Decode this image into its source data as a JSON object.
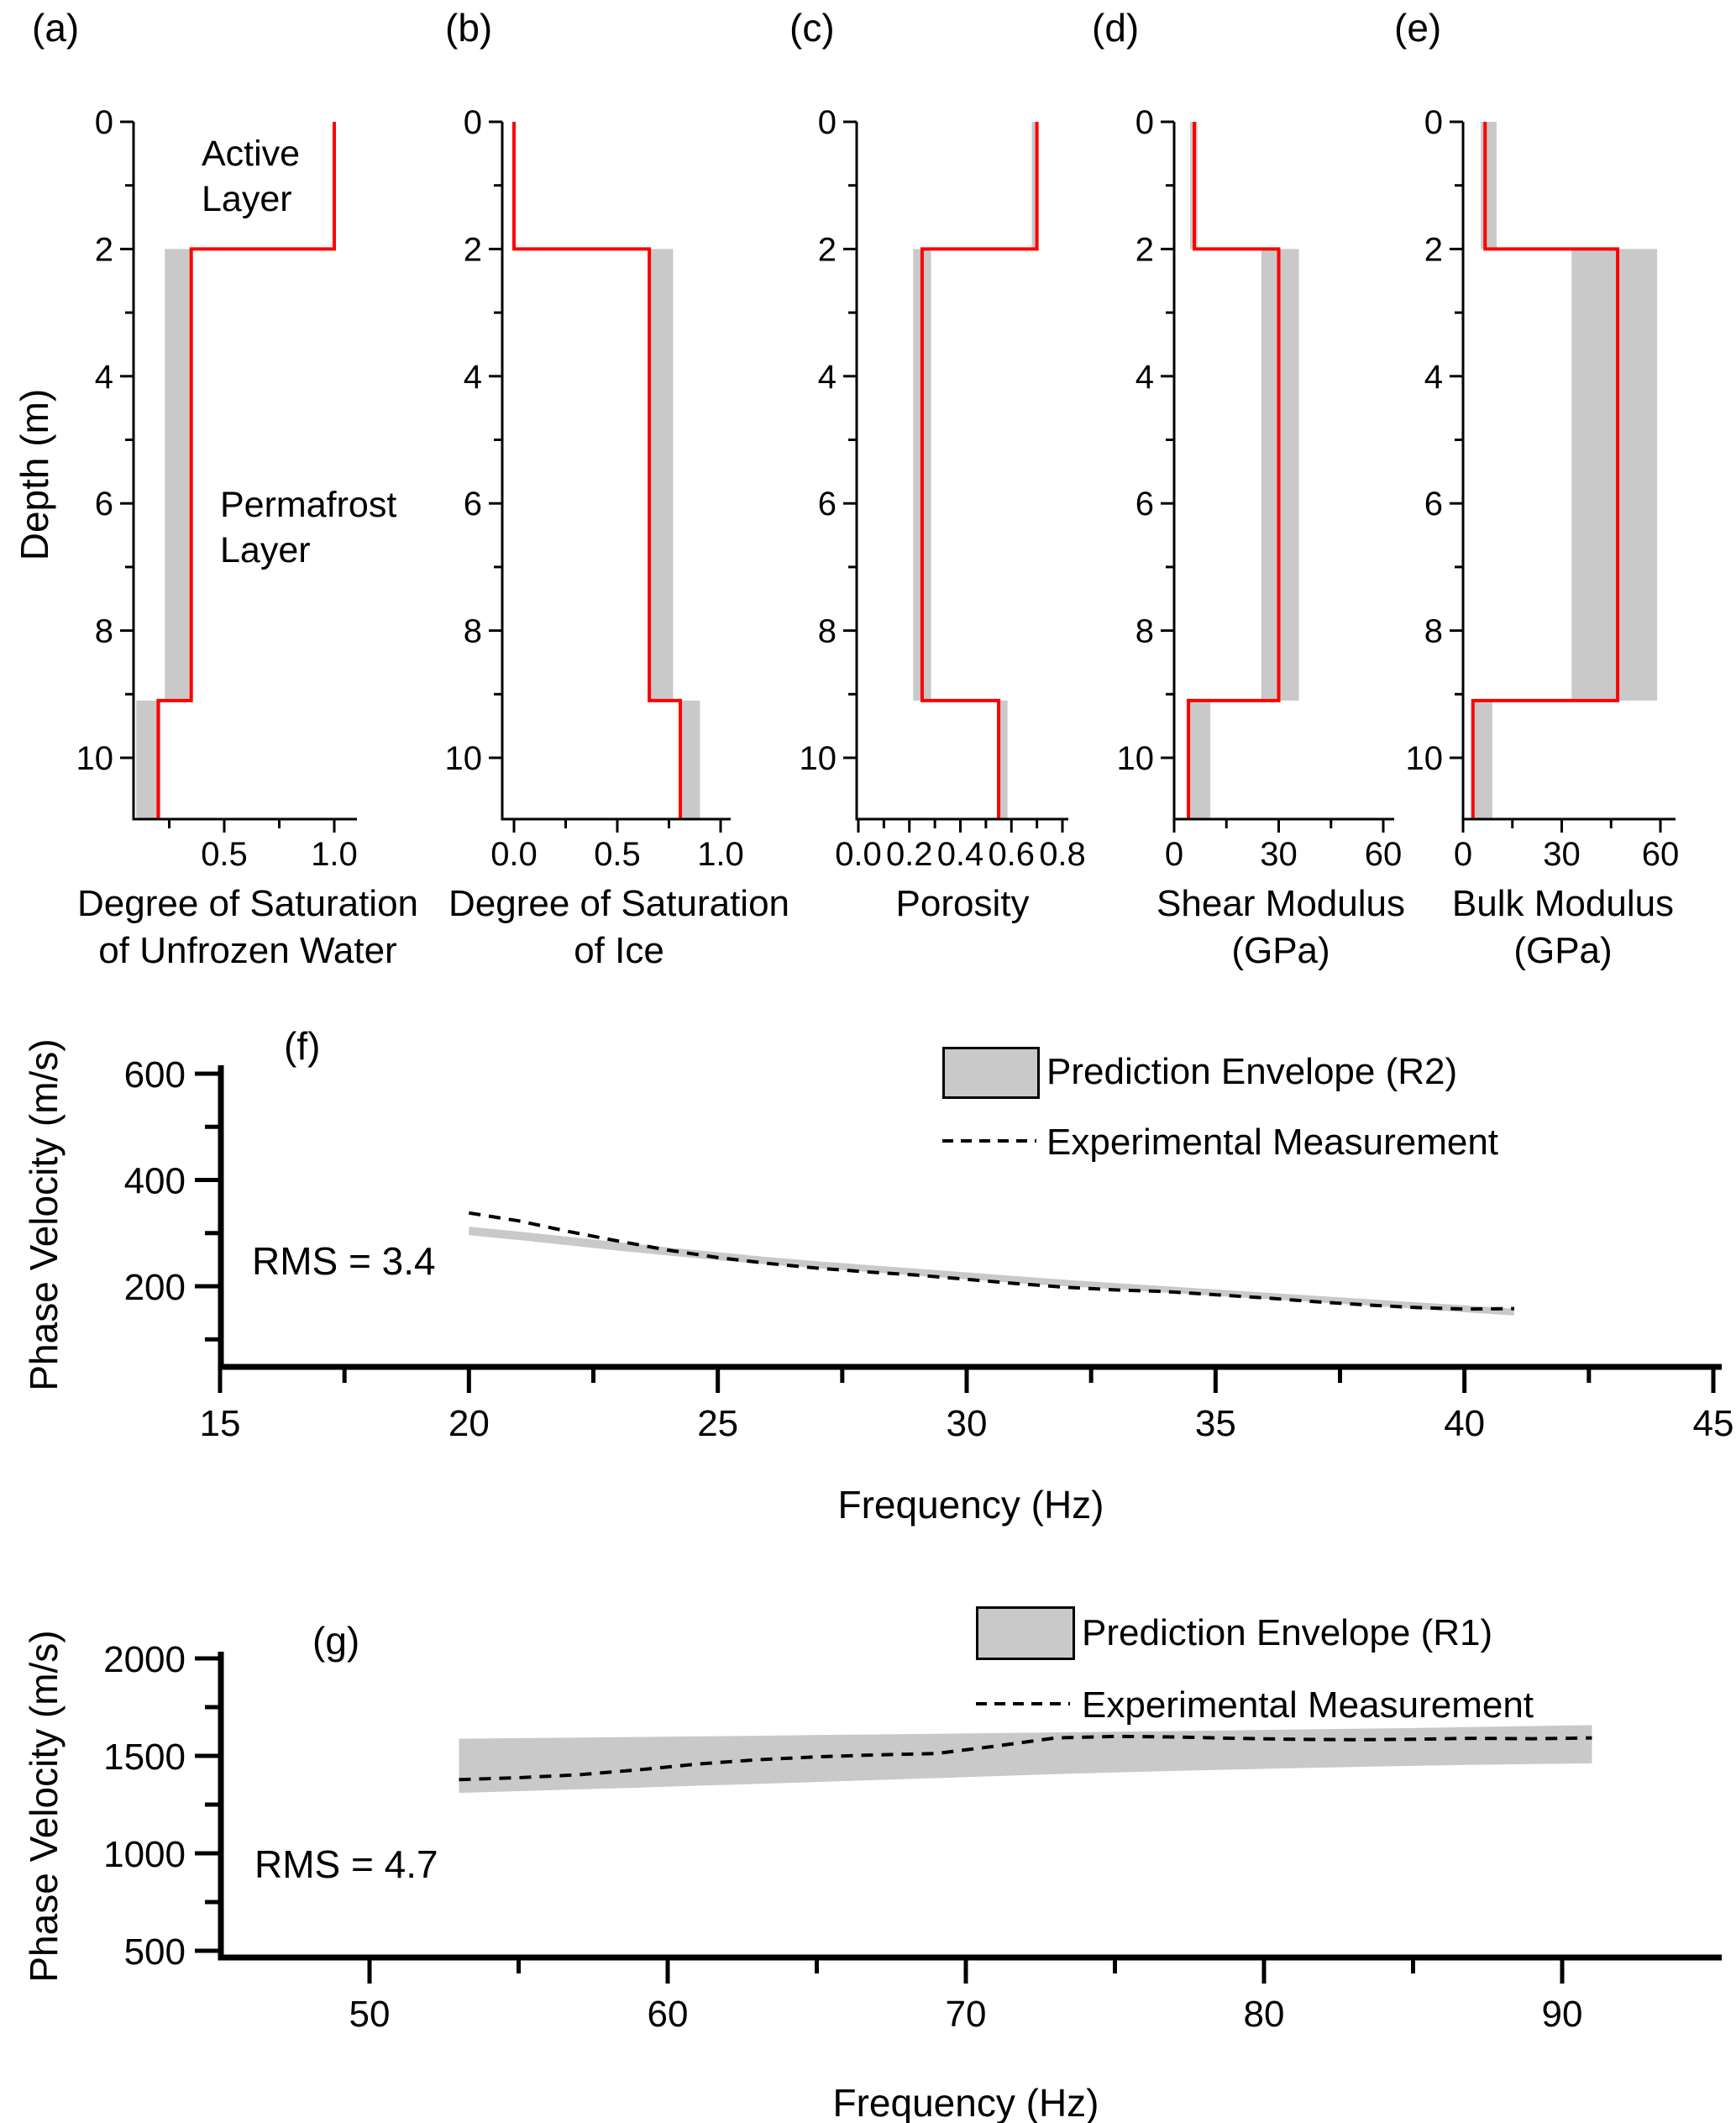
{
  "shared": {
    "depth_axis_label": "Depth (m)",
    "depth_tick_labels": [
      "0",
      "2",
      "4",
      "6",
      "8",
      "10"
    ],
    "depth_major_ticks": [
      0,
      2,
      4,
      6,
      8,
      10
    ],
    "depth_minor_ticks": [
      1,
      3,
      5,
      7,
      9
    ],
    "layer_boundaries_m": [
      2.0,
      9.1
    ],
    "annotations": {
      "active_layer": [
        "Active",
        "Layer"
      ],
      "permafrost_layer": [
        "Permafrost",
        "Layer"
      ]
    },
    "colors": {
      "prediction_line": "#FF0000",
      "envelope_fill": "#C9C9C9",
      "axis": "#000000"
    }
  },
  "chart_data": [
    {
      "id": "a",
      "type": "area",
      "panel_label": "(a)",
      "title": "Degree of Saturation of Unfrozen Water",
      "xlabel_lines": [
        "Degree of Saturation",
        "of Unfrozen Water"
      ],
      "ylabel": "Depth (m)",
      "xlim": [
        0.09,
        1.1
      ],
      "ylim": [
        0,
        11
      ],
      "x_major_ticks": [
        0.5,
        1.0
      ],
      "x_tick_labels": [
        "0.5",
        "1.0"
      ],
      "x_minor_ticks": [
        0.25,
        0.75
      ],
      "layers": [
        {
          "name": "active",
          "depth_top": 0,
          "depth_bottom": 2,
          "prediction": 1.0,
          "envelope": null
        },
        {
          "name": "permafrost",
          "depth_top": 2,
          "depth_bottom": 9.1,
          "prediction": 0.35,
          "envelope": [
            0.23,
            0.35
          ]
        },
        {
          "name": "below_permafrost",
          "depth_top": 9.1,
          "depth_bottom": 11,
          "prediction": 0.2,
          "envelope": [
            0.1,
            0.21
          ]
        }
      ]
    },
    {
      "id": "b",
      "type": "area",
      "panel_label": "(b)",
      "title": "Degree of Saturation of Ice",
      "xlabel_lines": [
        "Degree of Saturation",
        "of Ice"
      ],
      "ylabel": "Depth (m)",
      "xlim": [
        -0.06,
        1.05
      ],
      "ylim": [
        0,
        11
      ],
      "x_major_ticks": [
        0.0,
        0.5,
        1.0
      ],
      "x_tick_labels": [
        "0.0",
        "0.5",
        "1.0"
      ],
      "x_minor_ticks": [
        0.25,
        0.75
      ],
      "layers": [
        {
          "name": "active",
          "depth_top": 0,
          "depth_bottom": 2,
          "prediction": 0.0,
          "envelope": null
        },
        {
          "name": "permafrost",
          "depth_top": 2,
          "depth_bottom": 9.1,
          "prediction": 0.655,
          "envelope": [
            0.655,
            0.77
          ]
        },
        {
          "name": "below_permafrost",
          "depth_top": 9.1,
          "depth_bottom": 11,
          "prediction": 0.805,
          "envelope": [
            0.81,
            0.9
          ]
        }
      ]
    },
    {
      "id": "c",
      "type": "area",
      "panel_label": "(c)",
      "title": "Porosity",
      "xlabel_lines": [
        "Porosity"
      ],
      "ylabel": "Depth (m)",
      "xlim": [
        -0.01,
        0.82
      ],
      "ylim": [
        0,
        11
      ],
      "x_major_ticks": [
        0.0,
        0.2,
        0.4,
        0.6,
        0.8
      ],
      "x_tick_labels": [
        "0.0",
        "0.2",
        "0.4",
        "0.6",
        "0.8"
      ],
      "x_minor_ticks": [
        0.1,
        0.3,
        0.5,
        0.7
      ],
      "layers": [
        {
          "name": "active",
          "depth_top": 0,
          "depth_bottom": 2,
          "prediction": 0.7,
          "envelope": [
            0.68,
            0.7
          ]
        },
        {
          "name": "permafrost",
          "depth_top": 2,
          "depth_bottom": 9.1,
          "prediction": 0.25,
          "envelope": [
            0.215,
            0.285
          ]
        },
        {
          "name": "below_permafrost",
          "depth_top": 9.1,
          "depth_bottom": 11,
          "prediction": 0.55,
          "envelope": [
            0.55,
            0.585
          ]
        }
      ]
    },
    {
      "id": "d",
      "type": "area",
      "panel_label": "(d)",
      "title": "Shear Modulus (GPa)",
      "xlabel_lines": [
        "Shear Modulus",
        "(GPa)"
      ],
      "ylabel": "Depth (m)",
      "xlim": [
        0,
        63
      ],
      "ylim": [
        0,
        11
      ],
      "x_major_ticks": [
        0,
        30,
        60
      ],
      "x_tick_labels": [
        "0",
        "30",
        "60"
      ],
      "x_minor_ticks": [
        15,
        45
      ],
      "layers": [
        {
          "name": "active",
          "depth_top": 0,
          "depth_bottom": 2,
          "prediction": 5.8,
          "envelope": [
            4.6,
            6.7
          ]
        },
        {
          "name": "permafrost",
          "depth_top": 2,
          "depth_bottom": 9.1,
          "prediction": 30,
          "envelope": [
            25,
            35.8
          ]
        },
        {
          "name": "below_permafrost",
          "depth_top": 9.1,
          "depth_bottom": 11,
          "prediction": 4.1,
          "envelope": [
            4.3,
            10.4
          ]
        }
      ]
    },
    {
      "id": "e",
      "type": "area",
      "panel_label": "(e)",
      "title": "Bulk Modulus (GPa)",
      "xlabel_lines": [
        "Bulk Modulus",
        "(GPa)"
      ],
      "ylabel": "Depth (m)",
      "xlim": [
        0,
        64.5
      ],
      "ylim": [
        0,
        11
      ],
      "x_major_ticks": [
        0,
        30,
        60
      ],
      "x_tick_labels": [
        "0",
        "30",
        "60"
      ],
      "x_minor_ticks": [
        15,
        45
      ],
      "layers": [
        {
          "name": "active",
          "depth_top": 0,
          "depth_bottom": 2,
          "prediction": 6.7,
          "envelope": [
            5.4,
            10.2
          ]
        },
        {
          "name": "permafrost",
          "depth_top": 2,
          "depth_bottom": 9.1,
          "prediction": 47,
          "envelope": [
            33,
            59
          ]
        },
        {
          "name": "below_permafrost",
          "depth_top": 9.1,
          "depth_bottom": 11,
          "prediction": 3.0,
          "envelope": [
            3.3,
            8.9
          ]
        }
      ]
    },
    {
      "id": "f",
      "type": "area-line",
      "panel_label": "(f)",
      "rms_text": "RMS = 3.4",
      "xlabel": "Frequency (Hz)",
      "ylabel": "Phase Velocity (m/s)",
      "xlim": [
        15,
        45
      ],
      "ylim": [
        50,
        615
      ],
      "x_major_ticks": [
        15,
        20,
        25,
        30,
        35,
        40,
        45
      ],
      "x_tick_labels": [
        "15",
        "20",
        "25",
        "30",
        "35",
        "40",
        "45"
      ],
      "x_minor_ticks": [
        17.5,
        22.5,
        27.5,
        32.5,
        37.5,
        42.5
      ],
      "y_major_ticks": [
        200,
        400,
        600
      ],
      "y_tick_labels": [
        "200",
        "400",
        "600"
      ],
      "y_minor_ticks": [
        100,
        300,
        500
      ],
      "legend": [
        {
          "swatch": "band",
          "label": "Prediction Envelope (R2)"
        },
        {
          "swatch": "dashed",
          "label": "Experimental Measurement"
        }
      ],
      "envelope": {
        "x": [
          20,
          21,
          22,
          23,
          24,
          25,
          26,
          27,
          28,
          29,
          30,
          31,
          32,
          33,
          34,
          35,
          36,
          37,
          38,
          39,
          40,
          41
        ],
        "upper": [
          312,
          303,
          293,
          283,
          273,
          264,
          255,
          247,
          240,
          233,
          226,
          219,
          212,
          206,
          200,
          194,
          188,
          182,
          176,
          170,
          164,
          158
        ],
        "lower": [
          296,
          287,
          277,
          267,
          258,
          249,
          241,
          234,
          227,
          220,
          213,
          206,
          200,
          194,
          188,
          182,
          176,
          170,
          164,
          158,
          151,
          145
        ]
      },
      "experimental": {
        "x": [
          20,
          21,
          22,
          23,
          24,
          25,
          26,
          27,
          28,
          29,
          30,
          31,
          32,
          33,
          34,
          35,
          36,
          37,
          38,
          39,
          40,
          41
        ],
        "y": [
          338,
          323,
          303,
          285,
          268,
          254,
          243,
          234,
          227,
          221,
          213,
          205,
          198,
          193,
          190,
          184,
          178,
          171,
          165,
          160,
          157,
          158
        ]
      }
    },
    {
      "id": "g",
      "type": "area-line",
      "panel_label": "(g)",
      "rms_text": "RMS = 4.7",
      "xlabel": "Frequency (Hz)",
      "ylabel": "Phase Velocity (m/s)",
      "xlim": [
        45,
        95
      ],
      "ylim": [
        475,
        2030
      ],
      "x_major_ticks": [
        50,
        60,
        70,
        80,
        90
      ],
      "x_tick_labels": [
        "50",
        "60",
        "70",
        "80",
        "90"
      ],
      "x_minor_ticks": [
        55,
        65,
        75,
        85
      ],
      "y_major_ticks": [
        500,
        1000,
        1500,
        2000
      ],
      "y_tick_labels": [
        "500",
        "1000",
        "1500",
        "2000"
      ],
      "y_minor_ticks": [
        750,
        1250,
        1750
      ],
      "legend": [
        {
          "swatch": "band",
          "label": "Prediction Envelope (R1)"
        },
        {
          "swatch": "dashed",
          "label": "Experimental Measurement"
        }
      ],
      "envelope": {
        "x": [
          53,
          55,
          57,
          59,
          61,
          63,
          65,
          67,
          69,
          71,
          73,
          75,
          77,
          79,
          81,
          83,
          85,
          87,
          89,
          91
        ],
        "upper": [
          1588,
          1591,
          1594,
          1597,
          1600,
          1603,
          1607,
          1610,
          1613,
          1617,
          1620,
          1624,
          1627,
          1631,
          1635,
          1639,
          1643,
          1648,
          1653,
          1658
        ],
        "lower": [
          1310,
          1319,
          1328,
          1337,
          1347,
          1356,
          1366,
          1376,
          1386,
          1396,
          1406,
          1415,
          1423,
          1430,
          1437,
          1443,
          1449,
          1454,
          1458,
          1462
        ]
      },
      "experimental": {
        "x": [
          53,
          55,
          57,
          59,
          61,
          63,
          65,
          67,
          69,
          71,
          73,
          75,
          77,
          79,
          81,
          83,
          85,
          87,
          89,
          91
        ],
        "y": [
          1378,
          1388,
          1403,
          1428,
          1458,
          1480,
          1495,
          1505,
          1512,
          1550,
          1592,
          1600,
          1597,
          1590,
          1585,
          1583,
          1585,
          1590,
          1588,
          1592
        ]
      }
    }
  ]
}
